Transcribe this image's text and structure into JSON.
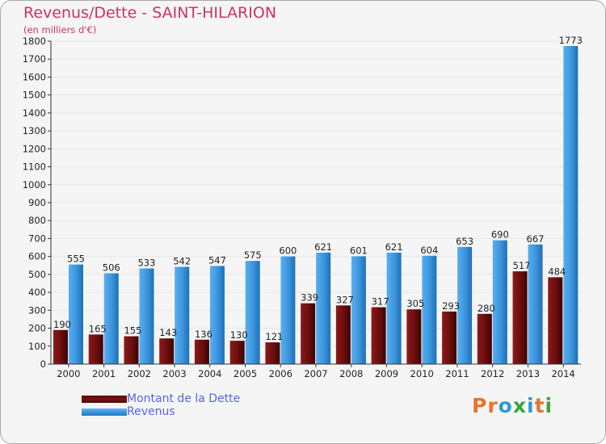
{
  "title": "Revenus/Dette - SAINT-HILARION",
  "subtitle": "(en milliers d'€)",
  "logo": {
    "text": "Proxiti",
    "letters": [
      "P",
      "r",
      "o",
      "x",
      "i",
      "t",
      "i"
    ],
    "colors": [
      "#e6742e",
      "#e6742e",
      "#2e9ad6",
      "#3aa83a",
      "#2e9ad6",
      "#e6742e",
      "#3aa83a"
    ]
  },
  "colors": {
    "dette": "#7a1212",
    "revenus": "#3a94dc",
    "grid": "#e6e6e6",
    "axis": "#333333"
  },
  "chart_data": {
    "type": "bar",
    "title": "Revenus/Dette - SAINT-HILARION",
    "ylabel": "(en milliers d'€)",
    "xlabel": "",
    "ylim": [
      0,
      1800
    ],
    "yticks": [
      0,
      100,
      200,
      300,
      400,
      500,
      600,
      700,
      800,
      900,
      1000,
      1100,
      1200,
      1300,
      1400,
      1500,
      1600,
      1700,
      1800
    ],
    "categories": [
      "2000",
      "2001",
      "2002",
      "2003",
      "2004",
      "2005",
      "2006",
      "2007",
      "2008",
      "2009",
      "2010",
      "2011",
      "2012",
      "2013",
      "2014"
    ],
    "series": [
      {
        "name": "Montant de la Dette",
        "values": [
          190,
          165,
          155,
          143,
          136,
          130,
          121,
          339,
          327,
          317,
          305,
          293,
          280,
          517,
          484
        ]
      },
      {
        "name": "Revenus",
        "values": [
          555,
          506,
          533,
          542,
          547,
          575,
          600,
          621,
          601,
          621,
          604,
          653,
          690,
          667,
          1773
        ]
      }
    ],
    "legend_position": "bottom-left"
  }
}
